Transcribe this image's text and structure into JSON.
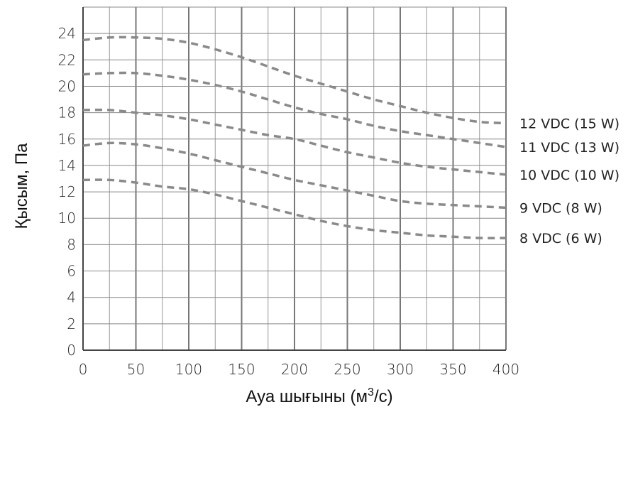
{
  "chart_data": {
    "type": "line",
    "xlabel_prefix": "Ауа шығыны (м",
    "xlabel_sup": "3",
    "xlabel_suffix": "/с)",
    "ylabel": "Қысым, Па",
    "xlim": [
      0,
      400
    ],
    "ylim": [
      0,
      26
    ],
    "x_major_ticks": [
      0,
      50,
      100,
      150,
      200,
      250,
      300,
      350,
      400
    ],
    "x_tick_labels": [
      "0",
      "50",
      "100",
      "150",
      "200",
      "250",
      "300",
      "350",
      "400"
    ],
    "y_ticks": [
      0,
      2,
      4,
      6,
      8,
      10,
      12,
      14,
      16,
      18,
      20,
      22,
      24
    ],
    "y_tick_labels": [
      "0",
      "2",
      "4",
      "6",
      "8",
      "10",
      "12",
      "14",
      "16",
      "18",
      "20",
      "22",
      "24"
    ],
    "grid": true,
    "line_style": "dashed",
    "series_color": "#8a8a8a",
    "x": [
      0,
      25,
      50,
      75,
      100,
      125,
      150,
      175,
      200,
      225,
      250,
      275,
      300,
      325,
      350,
      375,
      400
    ],
    "series": [
      {
        "name": "12 VDC (15 W)",
        "values": [
          23.5,
          23.7,
          23.7,
          23.6,
          23.3,
          22.8,
          22.2,
          21.5,
          20.8,
          20.2,
          19.6,
          19.0,
          18.5,
          18.0,
          17.6,
          17.3,
          17.2
        ]
      },
      {
        "name": "11 VDC (13 W)",
        "values": [
          20.9,
          21.0,
          21.0,
          20.8,
          20.5,
          20.1,
          19.6,
          19.0,
          18.4,
          17.9,
          17.5,
          17.0,
          16.6,
          16.3,
          16.0,
          15.7,
          15.4
        ]
      },
      {
        "name": "10 VDC (10 W)",
        "values": [
          18.2,
          18.2,
          18.0,
          17.8,
          17.5,
          17.1,
          16.7,
          16.3,
          16.0,
          15.5,
          15.0,
          14.6,
          14.2,
          13.9,
          13.7,
          13.5,
          13.3
        ]
      },
      {
        "name": "9 VDC (8 W)",
        "values": [
          15.5,
          15.7,
          15.6,
          15.3,
          14.9,
          14.4,
          13.9,
          13.4,
          12.9,
          12.5,
          12.1,
          11.7,
          11.3,
          11.1,
          11.0,
          10.9,
          10.8
        ]
      },
      {
        "name": "8 VDC (6 W)",
        "values": [
          12.9,
          12.9,
          12.7,
          12.4,
          12.2,
          11.8,
          11.3,
          10.8,
          10.3,
          9.8,
          9.4,
          9.1,
          8.9,
          8.7,
          8.6,
          8.5,
          8.5
        ]
      }
    ]
  }
}
